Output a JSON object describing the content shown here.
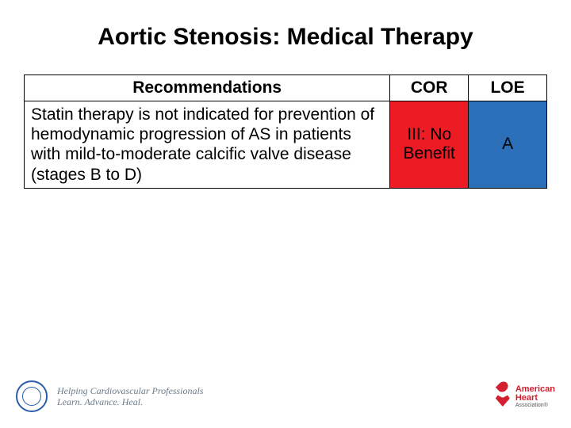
{
  "title": "Aortic Stenosis: Medical Therapy",
  "table": {
    "headers": {
      "rec": "Recommendations",
      "cor": "COR",
      "loe": "LOE"
    },
    "row": {
      "rec": "Statin therapy is not indicated for prevention of hemodynamic progression of AS in patients with mild-to-moderate calcific valve disease (stages B to D)",
      "cor": "III: No Benefit",
      "loe": "A",
      "cor_bg": "#ed1c24",
      "loe_bg": "#2a6fb7"
    }
  },
  "footer": {
    "acc_line1": "Helping Cardiovascular Professionals",
    "acc_line2": "Learn. Advance. Heal.",
    "aha_line1": "American",
    "aha_line2": "Heart",
    "aha_line3": "Association®"
  },
  "colors": {
    "title": "#000000",
    "border": "#000000",
    "acc_blue": "#2a5da8",
    "aha_red": "#d22030"
  }
}
